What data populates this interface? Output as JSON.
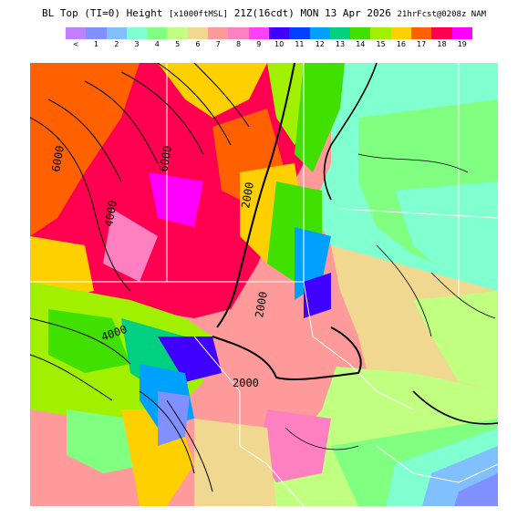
{
  "header": {
    "title_left": "BL Top (TI=0) Height",
    "title_units": "[x1000ftMSL]",
    "title_valid": "21Z(16cdt) MON 13 Apr 2026",
    "title_run": "21hrFcst@0208z NAM"
  },
  "legend": {
    "labels": [
      "<",
      "1",
      "2",
      "3",
      "4",
      "5",
      "6",
      "7",
      "8",
      "9",
      "10",
      "11",
      "12",
      "13",
      "14",
      "15",
      "16",
      "17",
      "18",
      "19"
    ],
    "colors": [
      "#c080ff",
      "#8090ff",
      "#80c0ff",
      "#80ffd0",
      "#80ff80",
      "#c0ff80",
      "#f0d890",
      "#ff9a9a",
      "#ff80c0",
      "#ff40ff",
      "#4000ff",
      "#0040ff",
      "#00a0ff",
      "#00d080",
      "#40e000",
      "#a0f000",
      "#ffd000",
      "#ff6000",
      "#ff0050",
      "#ff00ff"
    ]
  },
  "map": {
    "contour_labels": [
      "6000",
      "4000",
      "2000",
      "2000",
      "6000",
      "4000",
      "2000"
    ]
  }
}
